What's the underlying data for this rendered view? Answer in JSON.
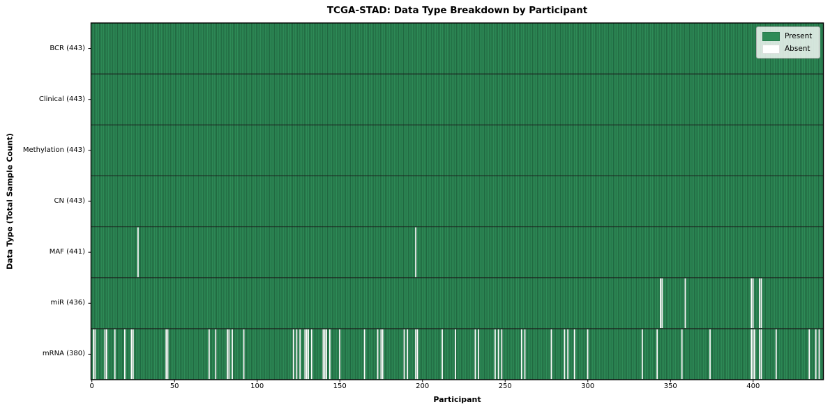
{
  "chart_data": {
    "type": "heatmap",
    "title": "TCGA-STAD: Data Type Breakdown by Participant",
    "xlabel": "Participant",
    "ylabel": "Data Type (Total Sample Count)",
    "n_participants": 443,
    "x_ticks": [
      0,
      50,
      100,
      150,
      200,
      250,
      300,
      350,
      400
    ],
    "legend": {
      "position": "upper right",
      "present_label": "Present",
      "absent_label": "Absent"
    },
    "colors": {
      "present": "#2e8b57",
      "absent": "#ffffff",
      "column_edge": "rgba(8,40,24,0.5)",
      "row_separator": "#1a1a1a",
      "plot_border": "#000000",
      "figure_background": "#ffffff"
    },
    "rows": [
      {
        "label": "BCR (443)",
        "data_type": "BCR",
        "present_count": 443,
        "absent_participants": []
      },
      {
        "label": "Clinical (443)",
        "data_type": "Clinical",
        "present_count": 443,
        "absent_participants": []
      },
      {
        "label": "Methylation (443)",
        "data_type": "Methylation",
        "present_count": 443,
        "absent_participants": []
      },
      {
        "label": "CN (443)",
        "data_type": "CN",
        "present_count": 443,
        "absent_participants": []
      },
      {
        "label": "MAF (441)",
        "data_type": "MAF",
        "present_count": 441,
        "absent_participants": [
          28,
          196
        ]
      },
      {
        "label": "miR (436)",
        "data_type": "miR",
        "present_count": 436,
        "absent_participants": [
          344,
          345,
          359,
          399,
          400,
          404,
          405
        ]
      },
      {
        "label": "mRNA (380)",
        "data_type": "mRNA",
        "present_count": 380,
        "absent_participants": [
          1,
          2,
          8,
          9,
          14,
          20,
          24,
          25,
          45,
          46,
          71,
          75,
          82,
          83,
          85,
          92,
          122,
          124,
          126,
          129,
          130,
          131,
          133,
          140,
          141,
          142,
          144,
          150,
          165,
          173,
          175,
          176,
          189,
          191,
          196,
          197,
          212,
          220,
          232,
          234,
          244,
          246,
          248,
          260,
          262,
          278,
          286,
          288,
          292,
          300,
          333,
          342,
          357,
          374,
          399,
          400,
          401,
          404,
          405,
          414,
          434,
          438,
          440
        ]
      }
    ]
  }
}
